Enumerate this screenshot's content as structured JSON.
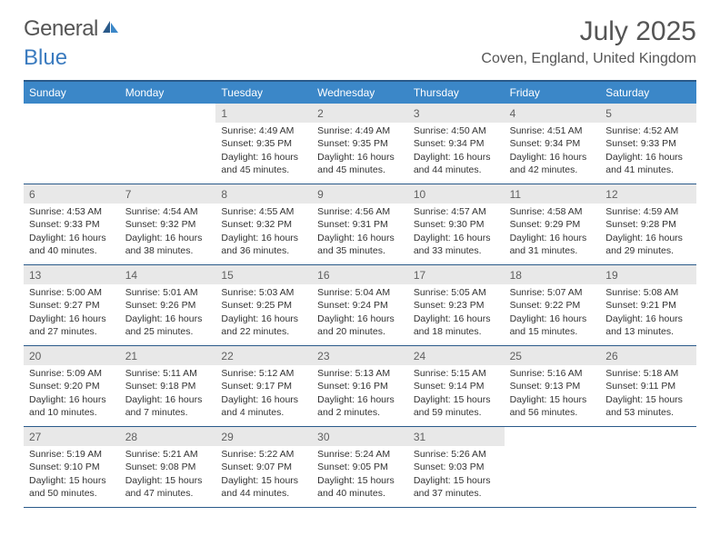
{
  "logo": {
    "text_gray": "General",
    "text_blue": "Blue"
  },
  "header": {
    "month_title": "July 2025",
    "location": "Coven, England, United Kingdom"
  },
  "colors": {
    "header_bar": "#3b87c8",
    "border": "#2a5a8a",
    "daynum_bg": "#e8e8e8",
    "text_gray": "#555555",
    "logo_blue": "#3b7bbf"
  },
  "day_names": [
    "Sunday",
    "Monday",
    "Tuesday",
    "Wednesday",
    "Thursday",
    "Friday",
    "Saturday"
  ],
  "weeks": [
    [
      {
        "empty": true
      },
      {
        "empty": true
      },
      {
        "num": "1",
        "sunrise": "Sunrise: 4:49 AM",
        "sunset": "Sunset: 9:35 PM",
        "daylight": "Daylight: 16 hours and 45 minutes."
      },
      {
        "num": "2",
        "sunrise": "Sunrise: 4:49 AM",
        "sunset": "Sunset: 9:35 PM",
        "daylight": "Daylight: 16 hours and 45 minutes."
      },
      {
        "num": "3",
        "sunrise": "Sunrise: 4:50 AM",
        "sunset": "Sunset: 9:34 PM",
        "daylight": "Daylight: 16 hours and 44 minutes."
      },
      {
        "num": "4",
        "sunrise": "Sunrise: 4:51 AM",
        "sunset": "Sunset: 9:34 PM",
        "daylight": "Daylight: 16 hours and 42 minutes."
      },
      {
        "num": "5",
        "sunrise": "Sunrise: 4:52 AM",
        "sunset": "Sunset: 9:33 PM",
        "daylight": "Daylight: 16 hours and 41 minutes."
      }
    ],
    [
      {
        "num": "6",
        "sunrise": "Sunrise: 4:53 AM",
        "sunset": "Sunset: 9:33 PM",
        "daylight": "Daylight: 16 hours and 40 minutes."
      },
      {
        "num": "7",
        "sunrise": "Sunrise: 4:54 AM",
        "sunset": "Sunset: 9:32 PM",
        "daylight": "Daylight: 16 hours and 38 minutes."
      },
      {
        "num": "8",
        "sunrise": "Sunrise: 4:55 AM",
        "sunset": "Sunset: 9:32 PM",
        "daylight": "Daylight: 16 hours and 36 minutes."
      },
      {
        "num": "9",
        "sunrise": "Sunrise: 4:56 AM",
        "sunset": "Sunset: 9:31 PM",
        "daylight": "Daylight: 16 hours and 35 minutes."
      },
      {
        "num": "10",
        "sunrise": "Sunrise: 4:57 AM",
        "sunset": "Sunset: 9:30 PM",
        "daylight": "Daylight: 16 hours and 33 minutes."
      },
      {
        "num": "11",
        "sunrise": "Sunrise: 4:58 AM",
        "sunset": "Sunset: 9:29 PM",
        "daylight": "Daylight: 16 hours and 31 minutes."
      },
      {
        "num": "12",
        "sunrise": "Sunrise: 4:59 AM",
        "sunset": "Sunset: 9:28 PM",
        "daylight": "Daylight: 16 hours and 29 minutes."
      }
    ],
    [
      {
        "num": "13",
        "sunrise": "Sunrise: 5:00 AM",
        "sunset": "Sunset: 9:27 PM",
        "daylight": "Daylight: 16 hours and 27 minutes."
      },
      {
        "num": "14",
        "sunrise": "Sunrise: 5:01 AM",
        "sunset": "Sunset: 9:26 PM",
        "daylight": "Daylight: 16 hours and 25 minutes."
      },
      {
        "num": "15",
        "sunrise": "Sunrise: 5:03 AM",
        "sunset": "Sunset: 9:25 PM",
        "daylight": "Daylight: 16 hours and 22 minutes."
      },
      {
        "num": "16",
        "sunrise": "Sunrise: 5:04 AM",
        "sunset": "Sunset: 9:24 PM",
        "daylight": "Daylight: 16 hours and 20 minutes."
      },
      {
        "num": "17",
        "sunrise": "Sunrise: 5:05 AM",
        "sunset": "Sunset: 9:23 PM",
        "daylight": "Daylight: 16 hours and 18 minutes."
      },
      {
        "num": "18",
        "sunrise": "Sunrise: 5:07 AM",
        "sunset": "Sunset: 9:22 PM",
        "daylight": "Daylight: 16 hours and 15 minutes."
      },
      {
        "num": "19",
        "sunrise": "Sunrise: 5:08 AM",
        "sunset": "Sunset: 9:21 PM",
        "daylight": "Daylight: 16 hours and 13 minutes."
      }
    ],
    [
      {
        "num": "20",
        "sunrise": "Sunrise: 5:09 AM",
        "sunset": "Sunset: 9:20 PM",
        "daylight": "Daylight: 16 hours and 10 minutes."
      },
      {
        "num": "21",
        "sunrise": "Sunrise: 5:11 AM",
        "sunset": "Sunset: 9:18 PM",
        "daylight": "Daylight: 16 hours and 7 minutes."
      },
      {
        "num": "22",
        "sunrise": "Sunrise: 5:12 AM",
        "sunset": "Sunset: 9:17 PM",
        "daylight": "Daylight: 16 hours and 4 minutes."
      },
      {
        "num": "23",
        "sunrise": "Sunrise: 5:13 AM",
        "sunset": "Sunset: 9:16 PM",
        "daylight": "Daylight: 16 hours and 2 minutes."
      },
      {
        "num": "24",
        "sunrise": "Sunrise: 5:15 AM",
        "sunset": "Sunset: 9:14 PM",
        "daylight": "Daylight: 15 hours and 59 minutes."
      },
      {
        "num": "25",
        "sunrise": "Sunrise: 5:16 AM",
        "sunset": "Sunset: 9:13 PM",
        "daylight": "Daylight: 15 hours and 56 minutes."
      },
      {
        "num": "26",
        "sunrise": "Sunrise: 5:18 AM",
        "sunset": "Sunset: 9:11 PM",
        "daylight": "Daylight: 15 hours and 53 minutes."
      }
    ],
    [
      {
        "num": "27",
        "sunrise": "Sunrise: 5:19 AM",
        "sunset": "Sunset: 9:10 PM",
        "daylight": "Daylight: 15 hours and 50 minutes."
      },
      {
        "num": "28",
        "sunrise": "Sunrise: 5:21 AM",
        "sunset": "Sunset: 9:08 PM",
        "daylight": "Daylight: 15 hours and 47 minutes."
      },
      {
        "num": "29",
        "sunrise": "Sunrise: 5:22 AM",
        "sunset": "Sunset: 9:07 PM",
        "daylight": "Daylight: 15 hours and 44 minutes."
      },
      {
        "num": "30",
        "sunrise": "Sunrise: 5:24 AM",
        "sunset": "Sunset: 9:05 PM",
        "daylight": "Daylight: 15 hours and 40 minutes."
      },
      {
        "num": "31",
        "sunrise": "Sunrise: 5:26 AM",
        "sunset": "Sunset: 9:03 PM",
        "daylight": "Daylight: 15 hours and 37 minutes."
      },
      {
        "empty": true
      },
      {
        "empty": true
      }
    ]
  ]
}
